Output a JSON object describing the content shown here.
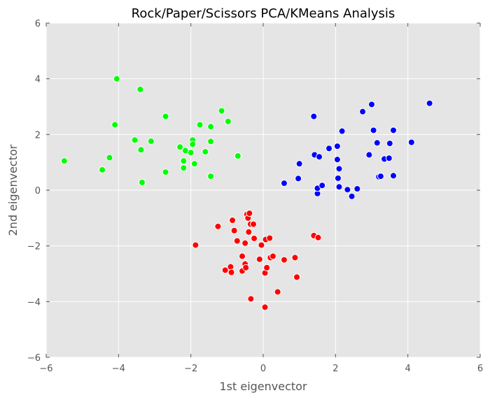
{
  "chart_data": {
    "type": "scatter",
    "title": "Rock/Paper/Scissors PCA/KMeans Analysis",
    "xlabel": "1st eigenvector",
    "ylabel": "2nd eigenvector",
    "xlim": [
      -6,
      6
    ],
    "ylim": [
      -6,
      6
    ],
    "xticks": [
      "−6",
      "−4",
      "−2",
      "0",
      "2",
      "4",
      "6"
    ],
    "yticks": [
      "−6",
      "−4",
      "−2",
      "0",
      "2",
      "4",
      "6"
    ],
    "grid": true,
    "background": "#e5e5e5",
    "series": [
      {
        "color": "#00ff00",
        "points": [
          [
            -5.5,
            1.05
          ],
          [
            -4.45,
            0.73
          ],
          [
            -4.25,
            1.17
          ],
          [
            -4.1,
            2.35
          ],
          [
            -4.05,
            4.0
          ],
          [
            -3.55,
            1.8
          ],
          [
            -3.4,
            3.62
          ],
          [
            -3.38,
            1.45
          ],
          [
            -3.35,
            0.28
          ],
          [
            -3.1,
            1.76
          ],
          [
            -2.7,
            2.65
          ],
          [
            -2.7,
            0.65
          ],
          [
            -2.3,
            1.55
          ],
          [
            -2.2,
            1.05
          ],
          [
            -2.2,
            0.8
          ],
          [
            -2.15,
            1.42
          ],
          [
            -2.0,
            1.35
          ],
          [
            -1.95,
            1.8
          ],
          [
            -1.95,
            1.65
          ],
          [
            -1.9,
            0.95
          ],
          [
            -1.75,
            2.35
          ],
          [
            -1.6,
            1.38
          ],
          [
            -1.45,
            2.28
          ],
          [
            -1.45,
            1.75
          ],
          [
            -1.45,
            0.5
          ],
          [
            -1.15,
            2.85
          ],
          [
            -0.97,
            2.47
          ],
          [
            -0.7,
            1.23
          ]
        ]
      },
      {
        "color": "#0000ff",
        "points": [
          [
            0.58,
            0.25
          ],
          [
            0.97,
            0.42
          ],
          [
            1.0,
            0.95
          ],
          [
            1.4,
            2.65
          ],
          [
            1.42,
            1.27
          ],
          [
            1.5,
            -0.12
          ],
          [
            1.5,
            0.07
          ],
          [
            1.55,
            1.2
          ],
          [
            1.63,
            0.17
          ],
          [
            1.82,
            1.5
          ],
          [
            2.05,
            1.58
          ],
          [
            2.05,
            1.1
          ],
          [
            2.07,
            0.43
          ],
          [
            2.1,
            0.77
          ],
          [
            2.1,
            0.12
          ],
          [
            2.18,
            2.12
          ],
          [
            2.33,
            0.02
          ],
          [
            2.45,
            -0.22
          ],
          [
            2.6,
            0.05
          ],
          [
            2.75,
            2.82
          ],
          [
            2.93,
            1.27
          ],
          [
            3.0,
            3.08
          ],
          [
            3.05,
            2.15
          ],
          [
            3.15,
            1.7
          ],
          [
            3.2,
            0.48
          ],
          [
            3.25,
            0.5
          ],
          [
            3.35,
            1.12
          ],
          [
            3.48,
            1.15
          ],
          [
            3.5,
            1.68
          ],
          [
            3.6,
            2.15
          ],
          [
            3.6,
            0.52
          ],
          [
            4.1,
            1.72
          ],
          [
            4.6,
            3.12
          ]
        ]
      },
      {
        "color": "#ff0000",
        "points": [
          [
            -1.87,
            -1.97
          ],
          [
            -1.25,
            -1.3
          ],
          [
            -1.05,
            -2.87
          ],
          [
            -0.9,
            -2.75
          ],
          [
            -0.88,
            -2.95
          ],
          [
            -0.85,
            -1.08
          ],
          [
            -0.8,
            -1.45
          ],
          [
            -0.72,
            -1.82
          ],
          [
            -0.58,
            -2.37
          ],
          [
            -0.58,
            -2.9
          ],
          [
            -0.5,
            -1.9
          ],
          [
            -0.5,
            -2.65
          ],
          [
            -0.48,
            -2.78
          ],
          [
            -0.45,
            -0.87
          ],
          [
            -0.42,
            -1.0
          ],
          [
            -0.4,
            -1.5
          ],
          [
            -0.38,
            -0.83
          ],
          [
            -0.35,
            -1.22
          ],
          [
            -0.34,
            -3.9
          ],
          [
            -0.27,
            -1.22
          ],
          [
            -0.25,
            -1.73
          ],
          [
            -0.1,
            -2.48
          ],
          [
            -0.05,
            -1.97
          ],
          [
            0.05,
            -4.2
          ],
          [
            0.05,
            -2.97
          ],
          [
            0.07,
            -1.77
          ],
          [
            0.1,
            -2.78
          ],
          [
            0.18,
            -1.72
          ],
          [
            0.2,
            -2.42
          ],
          [
            0.27,
            -2.37
          ],
          [
            0.4,
            -3.65
          ],
          [
            0.58,
            -2.5
          ],
          [
            0.88,
            -2.42
          ],
          [
            0.93,
            -3.12
          ],
          [
            1.4,
            -1.63
          ],
          [
            1.52,
            -1.7
          ]
        ]
      }
    ]
  }
}
